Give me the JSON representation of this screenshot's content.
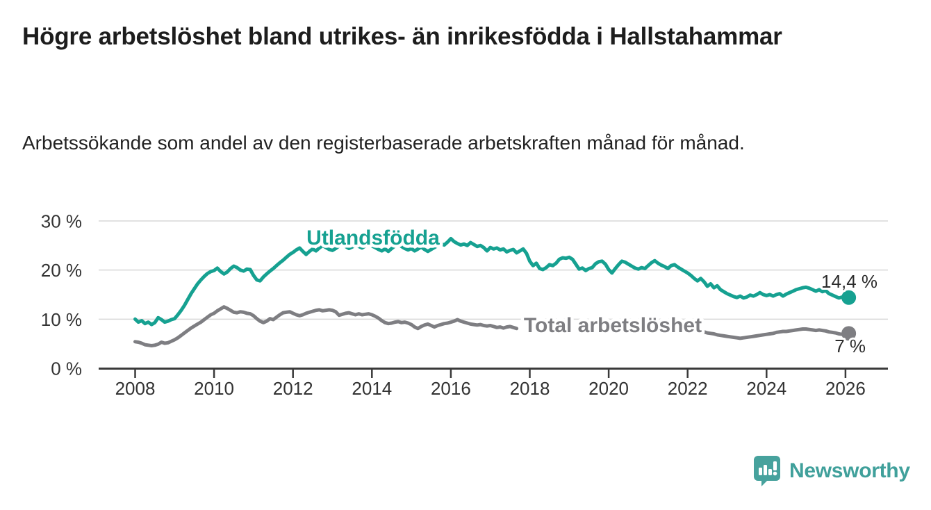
{
  "header": {
    "title": "Högre arbetslöshet bland utrikes- än inrikesfödda i Hallstahammar",
    "subtitle": "Arbetssökande som andel av den registerbaserade arbetskraften månad för månad."
  },
  "branding": {
    "name": "Newsworthy",
    "logo_icon": "bar-chart-speech-bubble",
    "color": "#47a29d"
  },
  "chart_data": {
    "type": "line",
    "frequency": "monthly",
    "x_start": "2008-01",
    "x_end": "2026-02",
    "x_ticks": [
      2008,
      2010,
      2012,
      2014,
      2016,
      2018,
      2020,
      2022,
      2024,
      2026
    ],
    "y_ticks": [
      0,
      10,
      20,
      30
    ],
    "y_tick_suffix": " %",
    "ylim": [
      0,
      31.5
    ],
    "grid": "horizontal",
    "axis_color": "#3a3a3a",
    "grid_color": "#d8d8d8",
    "series": [
      {
        "name": "Utlandsfödda",
        "color": "#16a191",
        "end_label": "14,4 %",
        "end_value": 14.4,
        "values": [
          10.0,
          9.4,
          9.7,
          9.1,
          9.4,
          8.9,
          9.3,
          10.3,
          9.9,
          9.4,
          9.6,
          9.9,
          10.1,
          10.9,
          11.8,
          12.8,
          14.0,
          15.2,
          16.2,
          17.2,
          18.0,
          18.7,
          19.3,
          19.7,
          19.9,
          20.4,
          19.7,
          19.2,
          19.6,
          20.3,
          20.8,
          20.5,
          20.0,
          19.8,
          20.2,
          20.1,
          18.9,
          18.0,
          17.8,
          18.6,
          19.2,
          19.8,
          20.3,
          20.9,
          21.5,
          22.0,
          22.6,
          23.2,
          23.6,
          24.1,
          24.5,
          23.8,
          23.2,
          23.8,
          24.3,
          23.9,
          24.5,
          25.0,
          24.6,
          24.2,
          24.0,
          24.4,
          24.9,
          25.3,
          24.8,
          24.4,
          24.7,
          25.1,
          24.8,
          24.5,
          24.9,
          25.2,
          24.9,
          24.6,
          24.2,
          23.9,
          24.3,
          23.8,
          24.4,
          24.9,
          25.3,
          24.8,
          24.4,
          24.1,
          24.4,
          23.9,
          24.3,
          24.7,
          24.2,
          23.8,
          24.2,
          24.6,
          25.0,
          25.4,
          25.1,
          25.7,
          26.4,
          25.8,
          25.4,
          25.1,
          25.3,
          25.0,
          25.6,
          25.2,
          24.8,
          25.0,
          24.6,
          23.9,
          24.6,
          24.3,
          24.5,
          24.1,
          24.3,
          23.7,
          24.0,
          24.2,
          23.5,
          23.9,
          24.3,
          23.4,
          21.8,
          20.9,
          21.4,
          20.3,
          20.1,
          20.5,
          21.1,
          20.9,
          21.4,
          22.2,
          22.5,
          22.4,
          22.6,
          22.2,
          21.2,
          20.2,
          20.4,
          19.9,
          20.3,
          20.5,
          21.3,
          21.7,
          21.8,
          21.2,
          20.1,
          19.4,
          20.3,
          21.1,
          21.8,
          21.6,
          21.2,
          20.8,
          20.4,
          20.2,
          20.5,
          20.3,
          20.9,
          21.5,
          21.9,
          21.4,
          21.0,
          20.7,
          20.3,
          20.9,
          21.1,
          20.6,
          20.2,
          19.8,
          19.4,
          18.9,
          18.3,
          17.8,
          18.3,
          17.6,
          16.7,
          17.2,
          16.4,
          16.8,
          16.0,
          15.6,
          15.2,
          14.9,
          14.6,
          14.4,
          14.7,
          14.3,
          14.5,
          14.9,
          14.7,
          15.0,
          15.4,
          15.0,
          14.8,
          15.0,
          14.7,
          15.0,
          15.2,
          14.7,
          15.1,
          15.4,
          15.7,
          16.0,
          16.2,
          16.4,
          16.5,
          16.3,
          16.0,
          15.7,
          16.0,
          15.6,
          15.8,
          15.2,
          14.9,
          14.6,
          14.3,
          14.5,
          14.2,
          14.4
        ]
      },
      {
        "name": "Total arbetslöshet",
        "color": "#7e7e82",
        "end_label": "7 %",
        "end_value": 7,
        "values": [
          5.4,
          5.3,
          5.1,
          4.8,
          4.7,
          4.6,
          4.7,
          4.9,
          5.3,
          5.1,
          5.2,
          5.5,
          5.8,
          6.2,
          6.7,
          7.2,
          7.7,
          8.2,
          8.6,
          9.0,
          9.4,
          9.9,
          10.4,
          10.9,
          11.2,
          11.7,
          12.1,
          12.5,
          12.2,
          11.8,
          11.4,
          11.3,
          11.5,
          11.4,
          11.2,
          11.1,
          10.7,
          10.1,
          9.6,
          9.3,
          9.6,
          10.1,
          9.9,
          10.4,
          10.9,
          11.3,
          11.4,
          11.5,
          11.2,
          10.9,
          10.7,
          10.9,
          11.2,
          11.4,
          11.6,
          11.8,
          11.9,
          11.7,
          11.8,
          11.9,
          11.8,
          11.5,
          10.8,
          11.0,
          11.2,
          11.3,
          11.1,
          10.9,
          11.1,
          10.9,
          11.0,
          11.1,
          10.9,
          10.6,
          10.2,
          9.7,
          9.3,
          9.1,
          9.2,
          9.4,
          9.5,
          9.3,
          9.4,
          9.2,
          8.9,
          8.4,
          8.1,
          8.5,
          8.8,
          9.0,
          8.7,
          8.4,
          8.7,
          8.9,
          9.1,
          9.2,
          9.4,
          9.6,
          9.9,
          9.6,
          9.4,
          9.2,
          9.0,
          8.9,
          8.8,
          8.9,
          8.7,
          8.6,
          8.7,
          8.5,
          8.3,
          8.4,
          8.2,
          8.4,
          8.5,
          8.3,
          8.1,
          null,
          null,
          null,
          null,
          null,
          null,
          null,
          null,
          null,
          null,
          null,
          null,
          null,
          null,
          null,
          null,
          null,
          null,
          null,
          null,
          null,
          null,
          null,
          null,
          null,
          null,
          null,
          null,
          null,
          null,
          null,
          null,
          null,
          null,
          null,
          null,
          null,
          null,
          null,
          null,
          null,
          null,
          null,
          null,
          null,
          null,
          null,
          null,
          null,
          null,
          null,
          null,
          null,
          null,
          null,
          null,
          7.4,
          7.2,
          7.1,
          7.0,
          6.8,
          6.7,
          6.6,
          6.5,
          6.4,
          6.3,
          6.2,
          6.1,
          6.2,
          6.3,
          6.4,
          6.5,
          6.6,
          6.7,
          6.8,
          6.9,
          7.0,
          7.1,
          7.3,
          7.4,
          7.5,
          7.5,
          7.6,
          7.7,
          7.8,
          7.9,
          8.0,
          8.0,
          7.9,
          7.8,
          7.7,
          7.8,
          7.7,
          7.6,
          7.4,
          7.3,
          7.2,
          7.0,
          6.9,
          7.0,
          7.1
        ]
      }
    ]
  }
}
